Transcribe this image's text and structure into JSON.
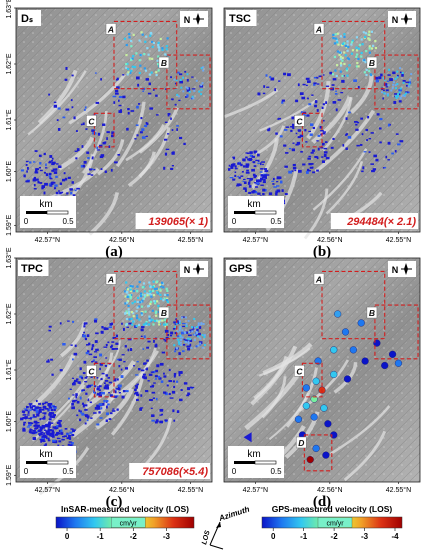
{
  "panels": [
    {
      "id": "a",
      "method_label": "Dₛ",
      "letter": "(a)",
      "count_label": "139065(× 1)",
      "regions": [
        "A",
        "B",
        "C"
      ],
      "y_ticks": [
        "1.63°E",
        "1.62°E",
        "1.61°E",
        "1.60°E",
        "1.59°E"
      ],
      "x_ticks": [
        "42.57°N",
        "42.56°N",
        "42.55°N"
      ]
    },
    {
      "id": "b",
      "method_label": "TSC",
      "letter": "(b)",
      "count_label": "294484(× 2.1)",
      "regions": [
        "A",
        "B",
        "C"
      ],
      "y_ticks": [],
      "x_ticks": [
        "42.57°N",
        "42.56°N",
        "42.55°N"
      ]
    },
    {
      "id": "c",
      "method_label": "TPC",
      "letter": "(c)",
      "count_label": "757086(×5.4)",
      "regions": [
        "A",
        "B",
        "C"
      ],
      "y_ticks": [
        "1.63°E",
        "1.62°E",
        "1.61°E",
        "1.60°E",
        "1.59°E"
      ],
      "x_ticks": [
        "42.57°N",
        "42.56°N",
        "42.55°N"
      ]
    },
    {
      "id": "d",
      "method_label": "GPS",
      "letter": "(d)",
      "count_label": "",
      "regions": [
        "A",
        "B",
        "C",
        "D"
      ],
      "y_ticks": [],
      "x_ticks": [
        "42.57°N",
        "42.56°N",
        "42.55°N"
      ]
    }
  ],
  "scale_bar": {
    "unit": "km",
    "ticks": [
      "0",
      "0.5"
    ]
  },
  "north_arrow": {
    "label": "N"
  },
  "insar_colorbar": {
    "title": "InSAR-measured velocity (LOS)",
    "unit": "cm/yr",
    "ticks": [
      "0",
      "-1",
      "-2",
      "-3"
    ],
    "colors": [
      "#0a14c8",
      "#1e78f0",
      "#32c8f0",
      "#78f0a0",
      "#e6f03c",
      "#f0a028",
      "#dc3214",
      "#a00000"
    ]
  },
  "gps_colorbar": {
    "title": "GPS-measured velocity (LOS)",
    "unit": "cm/yr",
    "ticks": [
      "0",
      "-1",
      "-2",
      "-3",
      "-4"
    ],
    "colors": [
      "#0a14c8",
      "#1e78f0",
      "#32c8f0",
      "#78f0a0",
      "#e6f03c",
      "#f0a028",
      "#dc3214",
      "#a00000"
    ]
  },
  "direction_legend": {
    "azimuth": "Azimuth",
    "los": "LOS"
  },
  "colors": {
    "region_box": "#d21e1e",
    "count_label": "#d21e1e",
    "background": "#ffffff"
  }
}
